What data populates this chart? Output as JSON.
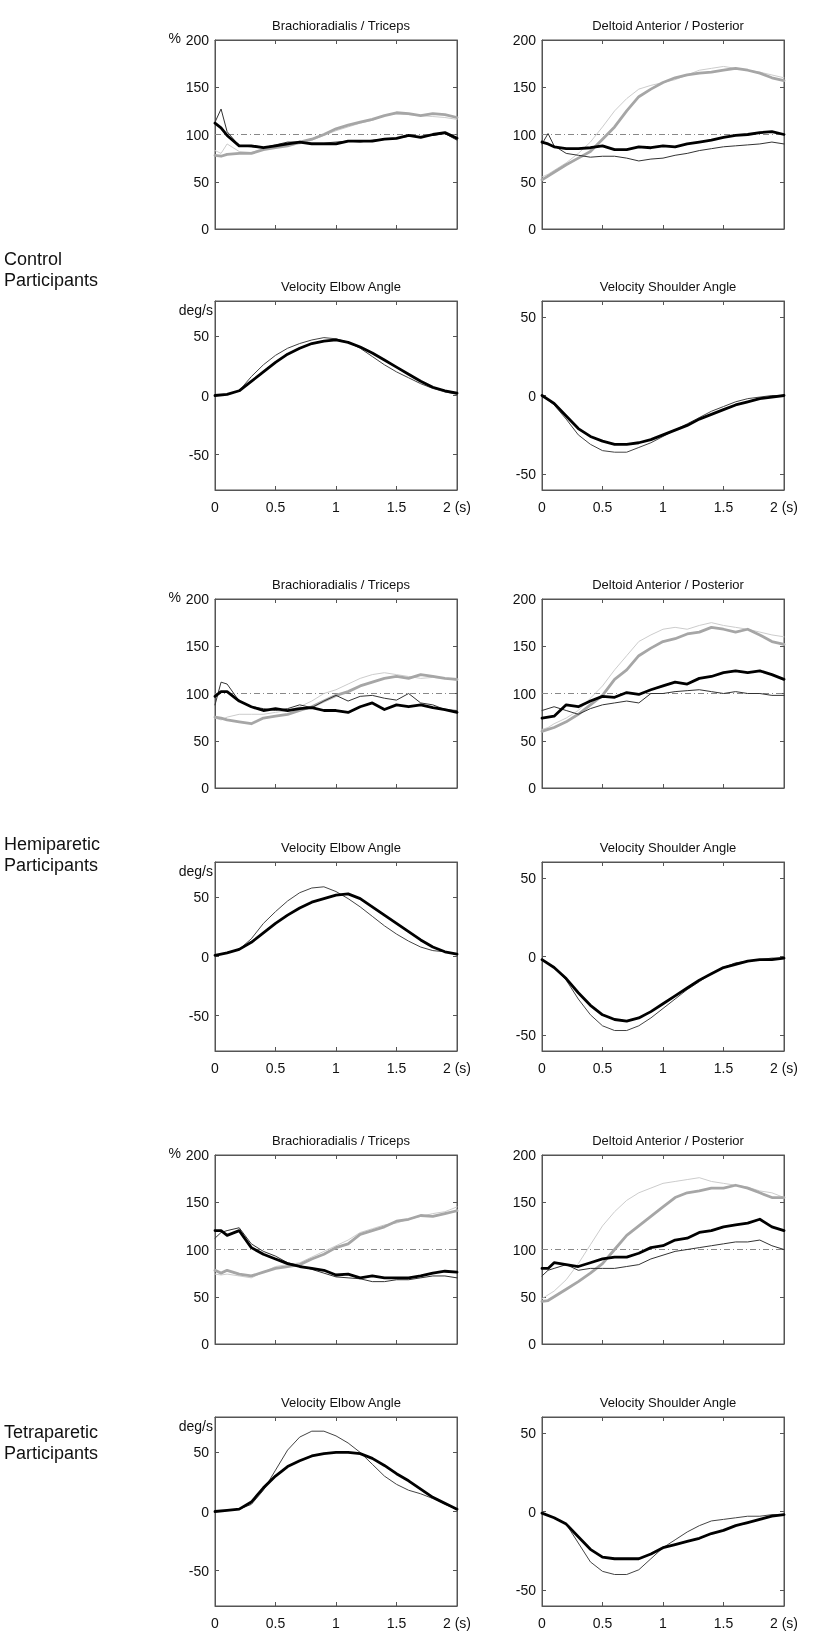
{
  "chart_data": [
    {
      "type": "line",
      "title": "Brachioradialis / Triceps",
      "ylabel": "%",
      "annotations": [
        "Control Participants"
      ],
      "x": [
        0,
        0.05,
        0.1,
        0.2,
        0.3,
        0.4,
        0.5,
        0.6,
        0.7,
        0.8,
        0.9,
        1,
        1.1,
        1.2,
        1.3,
        1.4,
        1.5,
        1.6,
        1.7,
        1.8,
        1.9,
        2
      ],
      "xlim": [
        0,
        2
      ],
      "xticks": [
        {
          "value": 0,
          "label": null
        },
        {
          "value": 0.5,
          "label": null
        },
        {
          "value": 1,
          "label": null
        },
        {
          "value": 1.5,
          "label": null
        },
        {
          "value": 2,
          "label": null
        }
      ],
      "ylim": [
        0,
        200
      ],
      "yticks": [
        0,
        50,
        100,
        150,
        200
      ],
      "tick_labels": "y",
      "marker": "none",
      "ref_lines": [
        {
          "axis": "y",
          "value": 100,
          "color": "#888888",
          "line_style": "dashed"
        }
      ],
      "series": [
        {
          "color": "#000000",
          "values": [
            112,
            107,
            99,
            88,
            88,
            86,
            88,
            90,
            92,
            90,
            90,
            90,
            93,
            93,
            93,
            95,
            96,
            99,
            97,
            100,
            102,
            96
          ]
        },
        {
          "color": "#333333",
          "values": [
            113,
            127,
            103,
            88,
            87,
            86,
            89,
            92,
            92,
            91,
            91,
            92,
            93,
            92,
            94,
            95,
            96,
            98,
            98,
            99,
            101,
            94
          ]
        },
        {
          "color": "#a6a6a6",
          "values": [
            78,
            77,
            79,
            80,
            80,
            84,
            86,
            88,
            92,
            95,
            100,
            106,
            110,
            113,
            116,
            120,
            123,
            122,
            120,
            122,
            121,
            118
          ]
        },
        {
          "color": "#cccccc",
          "values": [
            83,
            80,
            90,
            82,
            81,
            84,
            86,
            88,
            90,
            94,
            99,
            104,
            108,
            112,
            115,
            120,
            122,
            121,
            120,
            119,
            118,
            116
          ]
        }
      ]
    },
    {
      "type": "line",
      "title": "Deltoid Anterior / Posterior",
      "x": [
        0,
        0.05,
        0.1,
        0.2,
        0.3,
        0.4,
        0.5,
        0.6,
        0.7,
        0.8,
        0.9,
        1,
        1.1,
        1.2,
        1.3,
        1.4,
        1.5,
        1.6,
        1.7,
        1.8,
        1.9,
        2
      ],
      "xlim": [
        0,
        2
      ],
      "xticks": [
        {
          "value": 0,
          "label": null
        },
        {
          "value": 0.5,
          "label": null
        },
        {
          "value": 1,
          "label": null
        },
        {
          "value": 1.5,
          "label": null
        },
        {
          "value": 2,
          "label": null
        }
      ],
      "ylim": [
        0,
        200
      ],
      "yticks": [
        0,
        50,
        100,
        150,
        200
      ],
      "tick_labels": "y",
      "marker": "none",
      "ref_lines": [
        {
          "axis": "y",
          "value": 100,
          "color": "#888888",
          "line_style": "dashed"
        }
      ],
      "series": [
        {
          "color": "#000000",
          "values": [
            92,
            90,
            87,
            85,
            85,
            86,
            88,
            84,
            84,
            87,
            86,
            88,
            87,
            90,
            92,
            94,
            97,
            99,
            100,
            102,
            103,
            100
          ]
        },
        {
          "color": "#333333",
          "values": [
            90,
            101,
            88,
            80,
            78,
            76,
            77,
            77,
            75,
            72,
            74,
            75,
            78,
            80,
            83,
            85,
            87,
            88,
            89,
            90,
            92,
            90
          ]
        },
        {
          "color": "#a6a6a6",
          "values": [
            52,
            56,
            60,
            68,
            75,
            82,
            95,
            108,
            125,
            140,
            148,
            155,
            160,
            163,
            165,
            166,
            168,
            170,
            168,
            165,
            160,
            157
          ]
        },
        {
          "color": "#cccccc",
          "values": [
            55,
            58,
            62,
            70,
            80,
            92,
            108,
            125,
            138,
            148,
            152,
            155,
            158,
            163,
            168,
            170,
            172,
            170,
            168,
            166,
            163,
            160
          ]
        }
      ]
    },
    {
      "type": "line",
      "title": "Velocity Elbow Angle",
      "ylabel": "deg/s",
      "x": [
        0,
        0.1,
        0.2,
        0.3,
        0.4,
        0.5,
        0.6,
        0.7,
        0.8,
        0.9,
        1,
        1.1,
        1.2,
        1.3,
        1.4,
        1.5,
        1.6,
        1.7,
        1.8,
        1.9,
        2
      ],
      "xlim": [
        0,
        2
      ],
      "xticks": [
        0,
        0.5,
        1,
        1.5,
        {
          "value": 2,
          "label": "2 (s)"
        }
      ],
      "ylim": [
        -80,
        80
      ],
      "yticks": [
        -50,
        0,
        50
      ],
      "marker": "none",
      "series": [
        {
          "color": "#000000",
          "values": [
            0,
            1,
            4,
            12,
            20,
            28,
            35,
            40,
            44,
            46,
            47,
            45,
            41,
            36,
            30,
            24,
            18,
            12,
            7,
            4,
            2
          ]
        },
        {
          "color": "#444444",
          "values": [
            0,
            1,
            4,
            16,
            26,
            34,
            40,
            44,
            47,
            49,
            48,
            45,
            40,
            33,
            26,
            20,
            15,
            10,
            6,
            3,
            1
          ]
        }
      ]
    },
    {
      "type": "line",
      "title": "Velocity Shoulder Angle",
      "x": [
        0,
        0.1,
        0.2,
        0.3,
        0.4,
        0.5,
        0.6,
        0.7,
        0.8,
        0.9,
        1,
        1.1,
        1.2,
        1.3,
        1.4,
        1.5,
        1.6,
        1.7,
        1.8,
        1.9,
        2
      ],
      "xlim": [
        0,
        2
      ],
      "xticks": [
        0,
        0.5,
        1,
        1.5,
        {
          "value": 2,
          "label": "2 (s)"
        }
      ],
      "ylim": [
        -60,
        60
      ],
      "yticks": [
        -50,
        0,
        50
      ],
      "marker": "none",
      "series": [
        {
          "color": "#000000",
          "values": [
            0,
            -5,
            -13,
            -21,
            -26,
            -29,
            -31,
            -31,
            -30,
            -28,
            -25,
            -22,
            -19,
            -15,
            -12,
            -9,
            -6,
            -4,
            -2,
            -1,
            0
          ]
        },
        {
          "color": "#444444",
          "values": [
            0,
            -6,
            -15,
            -25,
            -31,
            -35,
            -36,
            -36,
            -33,
            -30,
            -26,
            -22,
            -18,
            -14,
            -10,
            -7,
            -4,
            -2,
            -1,
            0,
            0
          ]
        }
      ]
    },
    {
      "type": "line",
      "title": "Brachioradialis / Triceps",
      "ylabel": "%",
      "annotations": [
        "Hemiparetic Participants"
      ],
      "x": [
        0,
        0.05,
        0.1,
        0.2,
        0.3,
        0.4,
        0.5,
        0.6,
        0.7,
        0.8,
        0.9,
        1,
        1.1,
        1.2,
        1.3,
        1.4,
        1.5,
        1.6,
        1.7,
        1.8,
        1.9,
        2
      ],
      "xlim": [
        0,
        2
      ],
      "xticks": [
        {
          "value": 0,
          "label": null
        },
        {
          "value": 0.5,
          "label": null
        },
        {
          "value": 1,
          "label": null
        },
        {
          "value": 1.5,
          "label": null
        },
        {
          "value": 2,
          "label": null
        }
      ],
      "ylim": [
        0,
        200
      ],
      "yticks": [
        0,
        50,
        100,
        150,
        200
      ],
      "tick_labels": "y",
      "marker": "none",
      "ref_lines": [
        {
          "axis": "y",
          "value": 100,
          "color": "#888888",
          "line_style": "dashed"
        }
      ],
      "series": [
        {
          "color": "#000000",
          "values": [
            97,
            102,
            102,
            92,
            86,
            82,
            84,
            82,
            84,
            85,
            82,
            82,
            80,
            86,
            90,
            83,
            88,
            86,
            88,
            85,
            83,
            80
          ]
        },
        {
          "color": "#333333",
          "values": [
            88,
            112,
            110,
            92,
            86,
            84,
            82,
            84,
            88,
            85,
            92,
            98,
            92,
            97,
            98,
            95,
            93,
            100,
            90,
            88,
            83,
            82
          ]
        },
        {
          "color": "#a6a6a6",
          "values": [
            75,
            74,
            72,
            70,
            68,
            74,
            76,
            78,
            82,
            86,
            92,
            98,
            102,
            108,
            112,
            116,
            118,
            116,
            120,
            118,
            116,
            115
          ]
        },
        {
          "color": "#cccccc",
          "values": [
            74,
            72,
            75,
            78,
            78,
            78,
            80,
            82,
            86,
            92,
            100,
            104,
            110,
            116,
            120,
            122,
            120,
            118,
            116,
            117,
            116,
            114
          ]
        }
      ]
    },
    {
      "type": "line",
      "title": "Deltoid Anterior / Posterior",
      "x": [
        0,
        0.05,
        0.1,
        0.2,
        0.3,
        0.4,
        0.5,
        0.6,
        0.7,
        0.8,
        0.9,
        1,
        1.1,
        1.2,
        1.3,
        1.4,
        1.5,
        1.6,
        1.7,
        1.8,
        1.9,
        2
      ],
      "xlim": [
        0,
        2
      ],
      "xticks": [
        {
          "value": 0,
          "label": null
        },
        {
          "value": 0.5,
          "label": null
        },
        {
          "value": 1,
          "label": null
        },
        {
          "value": 1.5,
          "label": null
        },
        {
          "value": 2,
          "label": null
        }
      ],
      "ylim": [
        0,
        200
      ],
      "yticks": [
        0,
        50,
        100,
        150,
        200
      ],
      "tick_labels": "y",
      "marker": "none",
      "ref_lines": [
        {
          "axis": "y",
          "value": 100,
          "color": "#888888",
          "line_style": "dashed"
        }
      ],
      "series": [
        {
          "color": "#000000",
          "values": [
            74,
            75,
            76,
            88,
            86,
            92,
            97,
            96,
            101,
            99,
            104,
            108,
            112,
            110,
            116,
            118,
            122,
            124,
            122,
            124,
            120,
            115
          ]
        },
        {
          "color": "#333333",
          "values": [
            82,
            84,
            86,
            82,
            78,
            84,
            88,
            90,
            92,
            90,
            100,
            100,
            102,
            103,
            104,
            102,
            100,
            102,
            100,
            100,
            98,
            98
          ]
        },
        {
          "color": "#a6a6a6",
          "values": [
            60,
            62,
            64,
            70,
            78,
            88,
            98,
            115,
            125,
            140,
            148,
            155,
            158,
            163,
            165,
            170,
            168,
            165,
            168,
            162,
            155,
            152
          ]
        },
        {
          "color": "#cccccc",
          "values": [
            62,
            64,
            68,
            74,
            82,
            95,
            108,
            125,
            140,
            155,
            162,
            168,
            170,
            168,
            172,
            175,
            172,
            170,
            168,
            165,
            162,
            160
          ]
        }
      ]
    },
    {
      "type": "line",
      "title": "Velocity Elbow Angle",
      "ylabel": "deg/s",
      "x": [
        0,
        0.1,
        0.2,
        0.3,
        0.4,
        0.5,
        0.6,
        0.7,
        0.8,
        0.9,
        1,
        1.1,
        1.2,
        1.3,
        1.4,
        1.5,
        1.6,
        1.7,
        1.8,
        1.9,
        2
      ],
      "xlim": [
        0,
        2
      ],
      "xticks": [
        0,
        0.5,
        1,
        1.5,
        {
          "value": 2,
          "label": "2 (s)"
        }
      ],
      "ylim": [
        -80,
        80
      ],
      "yticks": [
        -50,
        0,
        50
      ],
      "marker": "none",
      "series": [
        {
          "color": "#000000",
          "values": [
            1,
            3,
            6,
            12,
            20,
            28,
            35,
            41,
            46,
            49,
            52,
            53,
            49,
            42,
            35,
            28,
            21,
            14,
            8,
            4,
            2
          ]
        },
        {
          "color": "#444444",
          "values": [
            1,
            3,
            6,
            15,
            28,
            38,
            47,
            54,
            58,
            59,
            55,
            49,
            42,
            34,
            26,
            19,
            13,
            8,
            5,
            4,
            2
          ]
        }
      ]
    },
    {
      "type": "line",
      "title": "Velocity Shoulder Angle",
      "x": [
        0,
        0.1,
        0.2,
        0.3,
        0.4,
        0.5,
        0.6,
        0.7,
        0.8,
        0.9,
        1,
        1.1,
        1.2,
        1.3,
        1.4,
        1.5,
        1.6,
        1.7,
        1.8,
        1.9,
        2
      ],
      "xlim": [
        0,
        2
      ],
      "xticks": [
        0,
        0.5,
        1,
        1.5,
        {
          "value": 2,
          "label": "2 (s)"
        }
      ],
      "ylim": [
        -60,
        60
      ],
      "yticks": [
        -50,
        0,
        50
      ],
      "marker": "none",
      "series": [
        {
          "color": "#000000",
          "values": [
            -2,
            -7,
            -14,
            -23,
            -31,
            -37,
            -40,
            -41,
            -39,
            -35,
            -30,
            -25,
            -20,
            -15,
            -11,
            -7,
            -5,
            -3,
            -2,
            -2,
            -1
          ]
        },
        {
          "color": "#444444",
          "values": [
            -2,
            -7,
            -15,
            -27,
            -37,
            -44,
            -47,
            -47,
            -44,
            -39,
            -33,
            -27,
            -21,
            -16,
            -11,
            -7,
            -4,
            -3,
            -2,
            -1,
            -1
          ]
        }
      ]
    },
    {
      "type": "line",
      "title": "Brachioradialis / Triceps",
      "ylabel": "%",
      "annotations": [
        "Tetraparetic Participants"
      ],
      "x": [
        0,
        0.05,
        0.1,
        0.2,
        0.3,
        0.4,
        0.5,
        0.6,
        0.7,
        0.8,
        0.9,
        1,
        1.1,
        1.2,
        1.3,
        1.4,
        1.5,
        1.6,
        1.7,
        1.8,
        1.9,
        2
      ],
      "xlim": [
        0,
        2
      ],
      "xticks": [
        {
          "value": 0,
          "label": null
        },
        {
          "value": 0.5,
          "label": null
        },
        {
          "value": 1,
          "label": null
        },
        {
          "value": 1.5,
          "label": null
        },
        {
          "value": 2,
          "label": null
        }
      ],
      "ylim": [
        0,
        200
      ],
      "yticks": [
        0,
        50,
        100,
        150,
        200
      ],
      "tick_labels": "y",
      "marker": "none",
      "ref_lines": [
        {
          "axis": "y",
          "value": 100,
          "color": "#888888",
          "line_style": "dashed"
        }
      ],
      "series": [
        {
          "color": "#000000",
          "values": [
            120,
            120,
            115,
            120,
            102,
            95,
            90,
            85,
            82,
            80,
            78,
            73,
            74,
            70,
            72,
            70,
            70,
            70,
            72,
            75,
            77,
            76
          ]
        },
        {
          "color": "#333333",
          "values": [
            112,
            118,
            120,
            123,
            106,
            98,
            93,
            86,
            83,
            79,
            75,
            71,
            70,
            69,
            66,
            66,
            68,
            68,
            70,
            72,
            72,
            70
          ]
        },
        {
          "color": "#a6a6a6",
          "values": [
            78,
            75,
            78,
            74,
            72,
            76,
            80,
            82,
            84,
            90,
            95,
            102,
            106,
            116,
            120,
            124,
            130,
            132,
            136,
            135,
            138,
            141
          ]
        },
        {
          "color": "#cccccc",
          "values": [
            74,
            73,
            74,
            72,
            70,
            76,
            82,
            84,
            86,
            92,
            98,
            104,
            110,
            118,
            122,
            126,
            128,
            132,
            135,
            138,
            140,
            145
          ]
        }
      ]
    },
    {
      "type": "line",
      "title": "Deltoid Anterior / Posterior",
      "x": [
        0,
        0.05,
        0.1,
        0.2,
        0.3,
        0.4,
        0.5,
        0.6,
        0.7,
        0.8,
        0.9,
        1,
        1.1,
        1.2,
        1.3,
        1.4,
        1.5,
        1.6,
        1.7,
        1.8,
        1.9,
        2
      ],
      "xlim": [
        0,
        2
      ],
      "xticks": [
        {
          "value": 0,
          "label": null
        },
        {
          "value": 0.5,
          "label": null
        },
        {
          "value": 1,
          "label": null
        },
        {
          "value": 1.5,
          "label": null
        },
        {
          "value": 2,
          "label": null
        }
      ],
      "ylim": [
        0,
        200
      ],
      "yticks": [
        0,
        50,
        100,
        150,
        200
      ],
      "tick_labels": "y",
      "marker": "none",
      "ref_lines": [
        {
          "axis": "y",
          "value": 100,
          "color": "#888888",
          "line_style": "dashed"
        }
      ],
      "series": [
        {
          "color": "#000000",
          "values": [
            80,
            80,
            86,
            84,
            82,
            86,
            90,
            92,
            92,
            96,
            102,
            104,
            110,
            112,
            118,
            120,
            124,
            126,
            128,
            132,
            124,
            120
          ]
        },
        {
          "color": "#333333",
          "values": [
            72,
            78,
            80,
            84,
            78,
            80,
            80,
            80,
            82,
            84,
            90,
            94,
            98,
            100,
            102,
            104,
            106,
            108,
            108,
            110,
            104,
            100
          ]
        },
        {
          "color": "#a6a6a6",
          "values": [
            45,
            46,
            50,
            58,
            66,
            75,
            85,
            100,
            115,
            125,
            135,
            145,
            155,
            160,
            162,
            165,
            165,
            168,
            165,
            160,
            155,
            155
          ]
        },
        {
          "color": "#cccccc",
          "values": [
            48,
            52,
            56,
            68,
            85,
            105,
            125,
            140,
            152,
            160,
            165,
            170,
            172,
            174,
            176,
            172,
            170,
            168,
            166,
            162,
            160,
            155
          ]
        }
      ]
    },
    {
      "type": "line",
      "title": "Velocity Elbow Angle",
      "ylabel": "deg/s",
      "x": [
        0,
        0.1,
        0.2,
        0.3,
        0.4,
        0.5,
        0.6,
        0.7,
        0.8,
        0.9,
        1,
        1.1,
        1.2,
        1.3,
        1.4,
        1.5,
        1.6,
        1.7,
        1.8,
        1.9,
        2
      ],
      "xlim": [
        0,
        2
      ],
      "xticks": [
        0,
        0.5,
        1,
        1.5,
        {
          "value": 2,
          "label": "2 (s)"
        }
      ],
      "ylim": [
        -80,
        80
      ],
      "yticks": [
        -50,
        0,
        50
      ],
      "marker": "none",
      "series": [
        {
          "color": "#000000",
          "values": [
            0,
            1,
            2,
            8,
            20,
            30,
            38,
            43,
            47,
            49,
            50,
            50,
            49,
            45,
            39,
            32,
            26,
            19,
            12,
            7,
            2
          ]
        },
        {
          "color": "#444444",
          "values": [
            0,
            1,
            2,
            6,
            18,
            35,
            52,
            63,
            68,
            68,
            64,
            58,
            50,
            40,
            30,
            23,
            18,
            15,
            11,
            6,
            2
          ]
        }
      ]
    },
    {
      "type": "line",
      "title": "Velocity Shoulder Angle",
      "x": [
        0,
        0.1,
        0.2,
        0.3,
        0.4,
        0.5,
        0.6,
        0.7,
        0.8,
        0.9,
        1,
        1.1,
        1.2,
        1.3,
        1.4,
        1.5,
        1.6,
        1.7,
        1.8,
        1.9,
        2
      ],
      "xlim": [
        0,
        2
      ],
      "xticks": [
        0,
        0.5,
        1,
        1.5,
        {
          "value": 2,
          "label": "2 (s)"
        }
      ],
      "ylim": [
        -60,
        60
      ],
      "yticks": [
        -50,
        0,
        50
      ],
      "marker": "none",
      "series": [
        {
          "color": "#000000",
          "values": [
            -1,
            -4,
            -8,
            -16,
            -24,
            -29,
            -30,
            -30,
            -30,
            -27,
            -23,
            -21,
            -19,
            -17,
            -14,
            -12,
            -9,
            -7,
            -5,
            -3,
            -2
          ]
        },
        {
          "color": "#444444",
          "values": [
            -1,
            -4,
            -8,
            -20,
            -32,
            -38,
            -40,
            -40,
            -37,
            -30,
            -23,
            -18,
            -13,
            -9,
            -6,
            -5,
            -4,
            -3,
            -3,
            -2,
            -2
          ]
        }
      ]
    }
  ]
}
